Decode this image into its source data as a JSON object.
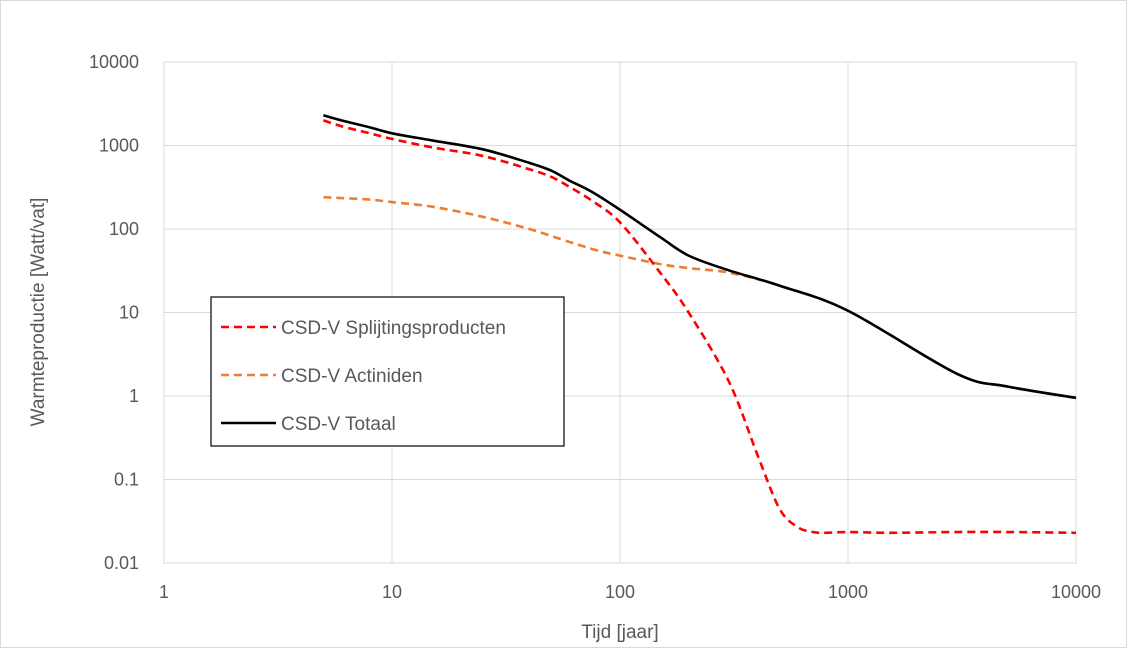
{
  "chart_data": {
    "type": "line",
    "title": "",
    "xlabel": "Tijd [jaar]",
    "ylabel": "Warmteproductie [Watt/vat]",
    "x_scale": "log",
    "y_scale": "log",
    "xlim": [
      1,
      10000
    ],
    "ylim": [
      0.01,
      10000
    ],
    "x_ticks": [
      1,
      10,
      100,
      1000,
      10000
    ],
    "x_tick_labels": [
      "1",
      "10",
      "100",
      "1000",
      "10000"
    ],
    "y_ticks": [
      0.01,
      0.1,
      1,
      10,
      100,
      1000,
      10000
    ],
    "y_tick_labels": [
      "0.01",
      "0.1",
      "1",
      "10",
      "100",
      "1000",
      "10000"
    ],
    "grid": true,
    "legend_position": "middle-left",
    "series": [
      {
        "name": "CSD-V Splijtingsproducten",
        "color": "#ff0000",
        "style": "dashed",
        "x": [
          5,
          6,
          8,
          10,
          15,
          25,
          40,
          50,
          60,
          75,
          100,
          150,
          200,
          300,
          400,
          500,
          600,
          700,
          800,
          1000,
          1500,
          3000,
          5000,
          10000
        ],
        "y": [
          2000,
          1700,
          1400,
          1200,
          950,
          750,
          520,
          420,
          320,
          220,
          120,
          30,
          10,
          1.5,
          0.2,
          0.045,
          0.027,
          0.0235,
          0.023,
          0.0235,
          0.023,
          0.0235,
          0.0235,
          0.023
        ]
      },
      {
        "name": "CSD-V Actiniden",
        "color": "#ed7d31",
        "style": "dashed",
        "x": [
          5,
          6,
          8,
          10,
          15,
          25,
          40,
          60,
          80,
          100,
          150,
          200,
          300,
          500,
          1000,
          3000,
          5000,
          10000
        ],
        "y": [
          240,
          235,
          225,
          210,
          185,
          140,
          100,
          70,
          55,
          48,
          38,
          34,
          30,
          21,
          10.5,
          1.85,
          1.3,
          0.95
        ]
      },
      {
        "name": "CSD-V Totaal",
        "color": "#000000",
        "style": "solid",
        "x": [
          5,
          6,
          8,
          10,
          15,
          25,
          40,
          50,
          60,
          75,
          100,
          150,
          200,
          300,
          500,
          1000,
          3000,
          5000,
          10000
        ],
        "y": [
          2300,
          2000,
          1650,
          1400,
          1150,
          900,
          620,
          500,
          380,
          280,
          170,
          80,
          48,
          32,
          21,
          10.5,
          1.85,
          1.3,
          0.95
        ]
      }
    ]
  }
}
